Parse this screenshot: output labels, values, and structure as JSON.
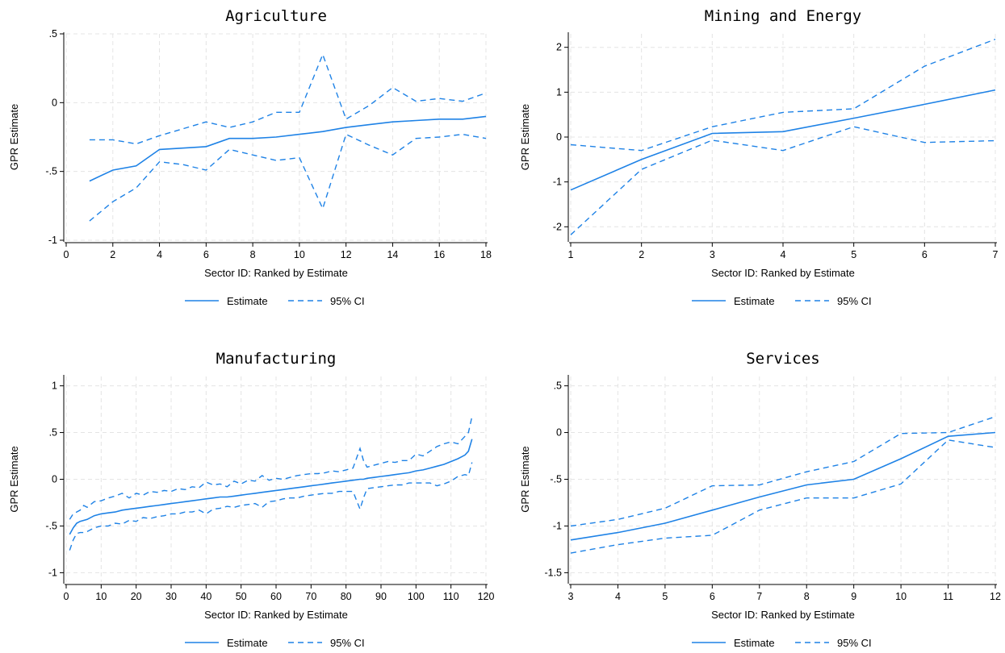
{
  "legend": {
    "estimate": "Estimate",
    "ci": "95% CI"
  },
  "colors": {
    "series": "#1e82e6"
  },
  "chart_data": [
    {
      "type": "line",
      "title": "Agriculture",
      "xlabel": "Sector ID: Ranked by Estimate",
      "ylabel": "GPR Estimate",
      "xlim": [
        0,
        18
      ],
      "ylim": [
        -1,
        0.5
      ],
      "xticks": [
        0,
        2,
        4,
        6,
        8,
        10,
        12,
        14,
        16,
        18
      ],
      "xticklabels": [
        "0",
        "2",
        "4",
        "6",
        "8",
        "10",
        "12",
        "14",
        "16",
        "18"
      ],
      "yticks": [
        -1,
        -0.5,
        0,
        0.5
      ],
      "yticklabels": [
        "-1",
        "-.5",
        "0",
        ".5"
      ],
      "grid": true,
      "legend_position": "bottom",
      "x": [
        1,
        2,
        3,
        4,
        5,
        6,
        7,
        8,
        9,
        10,
        11,
        12,
        13,
        14,
        15,
        16,
        17,
        18
      ],
      "series": [
        {
          "name": "Estimate",
          "values": [
            -0.57,
            -0.49,
            -0.46,
            -0.34,
            -0.33,
            -0.32,
            -0.26,
            -0.26,
            -0.25,
            -0.23,
            -0.21,
            -0.18,
            -0.16,
            -0.14,
            -0.13,
            -0.12,
            -0.12,
            -0.1
          ]
        },
        {
          "name": "95% CI",
          "values": [
            -0.27,
            -0.27,
            -0.3,
            -0.24,
            -0.19,
            -0.14,
            -0.18,
            -0.14,
            -0.07,
            -0.07,
            0.35,
            -0.12,
            -0.02,
            0.11,
            0.01,
            0.03,
            0.01,
            0.07
          ]
        },
        {
          "name": "95% CI",
          "values": [
            -0.86,
            -0.72,
            -0.62,
            -0.43,
            -0.45,
            -0.49,
            -0.34,
            -0.38,
            -0.42,
            -0.4,
            -0.77,
            -0.23,
            -0.31,
            -0.38,
            -0.26,
            -0.25,
            -0.23,
            -0.26
          ]
        }
      ]
    },
    {
      "type": "line",
      "title": "Mining and Energy",
      "xlabel": "Sector ID: Ranked by Estimate",
      "ylabel": "GPR Estimate",
      "xlim": [
        1,
        7
      ],
      "ylim": [
        -2.3,
        2.3
      ],
      "xticks": [
        1,
        2,
        3,
        4,
        5,
        6,
        7
      ],
      "xticklabels": [
        "1",
        "2",
        "3",
        "4",
        "5",
        "6",
        "7"
      ],
      "yticks": [
        -2,
        -1,
        0,
        1,
        2
      ],
      "yticklabels": [
        "-2",
        "-1",
        "0",
        "1",
        "2"
      ],
      "grid": true,
      "legend_position": "bottom",
      "x": [
        1,
        2,
        3,
        4,
        5,
        6,
        7
      ],
      "series": [
        {
          "name": "Estimate",
          "values": [
            -1.18,
            -0.5,
            0.08,
            0.12,
            0.42,
            0.73,
            1.05
          ]
        },
        {
          "name": "95% CI",
          "values": [
            -0.17,
            -0.3,
            0.23,
            0.55,
            0.63,
            1.58,
            2.18
          ]
        },
        {
          "name": "95% CI",
          "values": [
            -2.18,
            -0.72,
            -0.07,
            -0.3,
            0.23,
            -0.12,
            -0.08
          ]
        }
      ]
    },
    {
      "type": "line",
      "title": "Manufacturing",
      "xlabel": "Sector ID: Ranked by Estimate",
      "ylabel": "GPR Estimate",
      "xlim": [
        0,
        120
      ],
      "ylim": [
        -1.1,
        1.1
      ],
      "xticks": [
        0,
        10,
        20,
        30,
        40,
        50,
        60,
        70,
        80,
        90,
        100,
        110,
        120
      ],
      "xticklabels": [
        "0",
        "10",
        "20",
        "30",
        "40",
        "50",
        "60",
        "70",
        "80",
        "90",
        "100",
        "110",
        "120"
      ],
      "yticks": [
        -1,
        -0.5,
        0,
        0.5,
        1
      ],
      "yticklabels": [
        "-1",
        "-.5",
        "0",
        ".5",
        "1"
      ],
      "grid": true,
      "legend_position": "bottom",
      "x": [
        1,
        2,
        3,
        4,
        5,
        6,
        8,
        10,
        12,
        14,
        16,
        18,
        20,
        22,
        24,
        26,
        28,
        30,
        32,
        34,
        36,
        38,
        40,
        42,
        44,
        46,
        48,
        50,
        52,
        54,
        56,
        58,
        60,
        62,
        64,
        66,
        68,
        70,
        72,
        74,
        76,
        78,
        80,
        82,
        84,
        85,
        86,
        88,
        90,
        92,
        94,
        96,
        98,
        100,
        102,
        104,
        106,
        108,
        110,
        112,
        113,
        114,
        115,
        116
      ],
      "series": [
        {
          "name": "Estimate",
          "values": [
            -0.59,
            -0.52,
            -0.47,
            -0.45,
            -0.44,
            -0.43,
            -0.39,
            -0.37,
            -0.36,
            -0.35,
            -0.33,
            -0.32,
            -0.31,
            -0.3,
            -0.29,
            -0.28,
            -0.27,
            -0.26,
            -0.25,
            -0.24,
            -0.23,
            -0.22,
            -0.21,
            -0.2,
            -0.19,
            -0.19,
            -0.18,
            -0.17,
            -0.16,
            -0.15,
            -0.14,
            -0.13,
            -0.12,
            -0.11,
            -0.1,
            -0.09,
            -0.08,
            -0.07,
            -0.06,
            -0.05,
            -0.04,
            -0.03,
            -0.02,
            -0.01,
            0.0,
            0.0,
            0.01,
            0.02,
            0.03,
            0.04,
            0.05,
            0.06,
            0.07,
            0.09,
            0.1,
            0.12,
            0.14,
            0.16,
            0.19,
            0.22,
            0.24,
            0.26,
            0.3,
            0.43
          ]
        },
        {
          "name": "95% CI",
          "values": [
            -0.43,
            -0.37,
            -0.35,
            -0.33,
            -0.28,
            -0.3,
            -0.24,
            -0.23,
            -0.2,
            -0.18,
            -0.15,
            -0.2,
            -0.15,
            -0.17,
            -0.13,
            -0.14,
            -0.12,
            -0.13,
            -0.1,
            -0.11,
            -0.08,
            -0.09,
            -0.03,
            -0.06,
            -0.05,
            -0.08,
            -0.02,
            -0.05,
            -0.01,
            -0.02,
            0.04,
            -0.01,
            0.01,
            0.0,
            0.02,
            0.04,
            0.05,
            0.06,
            0.06,
            0.07,
            0.09,
            0.08,
            0.1,
            0.12,
            0.33,
            0.2,
            0.13,
            0.15,
            0.17,
            0.19,
            0.18,
            0.2,
            0.2,
            0.27,
            0.25,
            0.3,
            0.35,
            0.38,
            0.4,
            0.38,
            0.42,
            0.46,
            0.5,
            0.67
          ]
        },
        {
          "name": "95% CI",
          "values": [
            -0.76,
            -0.65,
            -0.58,
            -0.57,
            -0.57,
            -0.56,
            -0.52,
            -0.5,
            -0.5,
            -0.47,
            -0.48,
            -0.44,
            -0.45,
            -0.41,
            -0.42,
            -0.4,
            -0.39,
            -0.37,
            -0.37,
            -0.35,
            -0.35,
            -0.33,
            -0.37,
            -0.32,
            -0.31,
            -0.29,
            -0.3,
            -0.28,
            -0.27,
            -0.26,
            -0.3,
            -0.24,
            -0.23,
            -0.21,
            -0.2,
            -0.2,
            -0.18,
            -0.17,
            -0.16,
            -0.15,
            -0.15,
            -0.13,
            -0.13,
            -0.13,
            -0.32,
            -0.2,
            -0.1,
            -0.09,
            -0.08,
            -0.07,
            -0.06,
            -0.06,
            -0.04,
            -0.04,
            -0.04,
            -0.04,
            -0.07,
            -0.05,
            -0.02,
            0.03,
            0.04,
            0.05,
            0.04,
            0.18
          ]
        }
      ]
    },
    {
      "type": "line",
      "title": "Services",
      "xlabel": "Sector ID: Ranked by Estimate",
      "ylabel": "GPR Estimate",
      "xlim": [
        3,
        12
      ],
      "ylim": [
        -1.6,
        0.6
      ],
      "xticks": [
        3,
        4,
        5,
        6,
        7,
        8,
        9,
        10,
        11,
        12
      ],
      "xticklabels": [
        "3",
        "4",
        "5",
        "6",
        "7",
        "8",
        "9",
        "10",
        "11",
        "12"
      ],
      "yticks": [
        -1.5,
        -1,
        -0.5,
        0,
        0.5
      ],
      "yticklabels": [
        "-1.5",
        "-1",
        "-.5",
        "0",
        ".5"
      ],
      "grid": true,
      "legend_position": "bottom",
      "x": [
        3,
        4,
        5,
        6,
        7,
        8,
        9,
        10,
        11,
        12
      ],
      "series": [
        {
          "name": "Estimate",
          "values": [
            -1.15,
            -1.07,
            -0.97,
            -0.83,
            -0.69,
            -0.56,
            -0.5,
            -0.28,
            -0.04,
            0.0
          ]
        },
        {
          "name": "95% CI",
          "values": [
            -1.0,
            -0.93,
            -0.81,
            -0.57,
            -0.56,
            -0.42,
            -0.31,
            -0.01,
            0.0,
            0.17
          ]
        },
        {
          "name": "95% CI",
          "values": [
            -1.29,
            -1.2,
            -1.13,
            -1.1,
            -0.83,
            -0.7,
            -0.7,
            -0.55,
            -0.08,
            -0.16
          ]
        }
      ]
    }
  ]
}
